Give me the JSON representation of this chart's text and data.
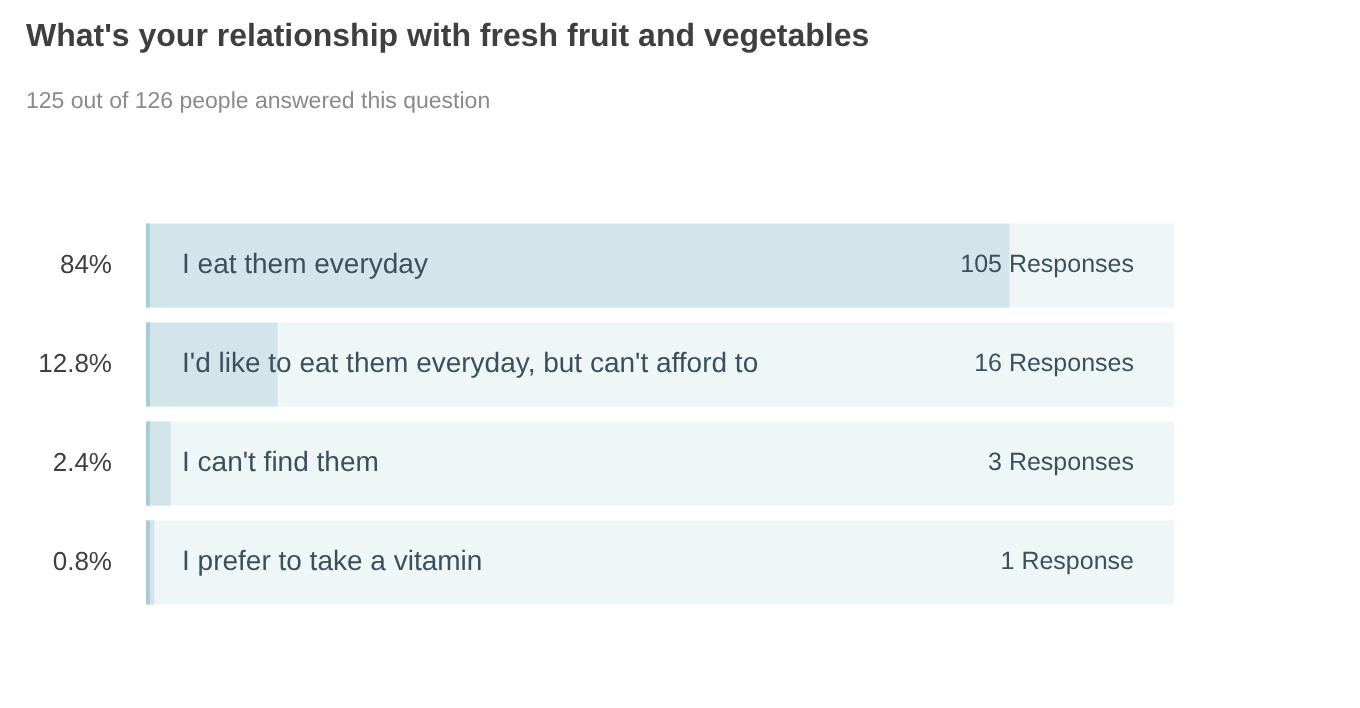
{
  "chart_data": {
    "type": "bar",
    "orientation": "horizontal",
    "title": "What's your relationship with fresh fruit and vegetables",
    "subtitle": "125 out of 126 people answered this question",
    "categories": [
      "I eat them everyday",
      "I'd like to eat them everyday, but can't afford to",
      "I can't find them",
      "I prefer to take a vitamin"
    ],
    "values": [
      84,
      12.8,
      2.4,
      0.8
    ],
    "color": "#d1e5ea",
    "value_labels": [
      "84%",
      "12.8%",
      "2.4%",
      "0.8%"
    ],
    "annotations": [
      "105 Responses",
      "16 Responses",
      "3 Responses",
      "1 Response"
    ],
    "xlim": [
      0,
      100
    ],
    "tick_labels": false,
    "legend": false
  }
}
